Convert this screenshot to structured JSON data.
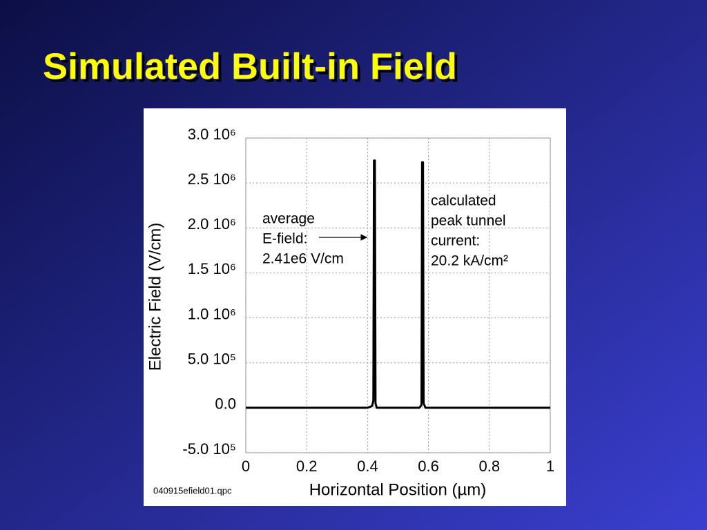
{
  "title": "Simulated Built-in Field",
  "chart_data": {
    "type": "line",
    "x_label": "Horizontal Position (µm)",
    "y_label": "Electric Field (V/cm)",
    "x": [
      0,
      0.4,
      0.415,
      0.419,
      0.421,
      0.424,
      0.426,
      0.43,
      0.57,
      0.577,
      0.579,
      0.582,
      0.584,
      0.59,
      1
    ],
    "values": [
      0,
      0,
      20000,
      80000,
      2750000,
      2750000,
      50000,
      0,
      0,
      30000,
      2730000,
      2730000,
      50000,
      0,
      0
    ],
    "color": "#000000",
    "xlim": [
      0,
      1
    ],
    "xticks": [
      0,
      0.2,
      0.4,
      0.6,
      0.8,
      1
    ],
    "ylim": [
      -500000,
      3000000
    ],
    "yticks": [
      {
        "value": -500000,
        "label": "-5.0 10⁵"
      },
      {
        "value": 0,
        "label": "0.0"
      },
      {
        "value": 500000,
        "label": "5.0 10⁵"
      },
      {
        "value": 1000000,
        "label": "1.0 10⁶"
      },
      {
        "value": 1500000,
        "label": "1.5 10⁶"
      },
      {
        "value": 2000000,
        "label": "2.0 10⁶"
      },
      {
        "value": 2500000,
        "label": "2.5 10⁶"
      },
      {
        "value": 3000000,
        "label": "3.0 10⁶"
      }
    ],
    "grid": true,
    "annotations": [
      {
        "lines": [
          "average",
          "E-field:",
          "2.41e6 V/cm"
        ]
      },
      {
        "lines": [
          "calculated",
          "peak tunnel",
          "current:",
          "20.2 kA/cm²"
        ]
      }
    ],
    "footnote": "040915efield01.qpc"
  }
}
